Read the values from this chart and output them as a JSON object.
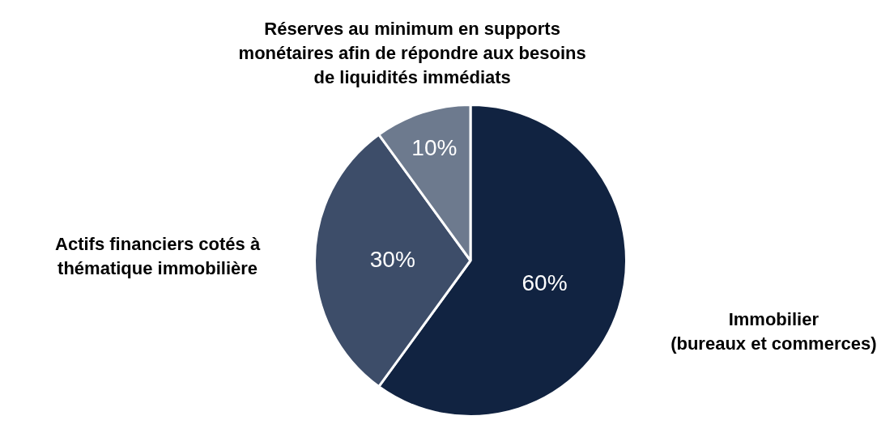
{
  "chart_data": {
    "type": "pie",
    "categories": [
      "Immobilier (bureaux et commerces)",
      "Actifs financiers cotés à thématique immobilière",
      "Réserves au minimum en supports monétaires afin de répondre aux besoins de liquidités immédiats"
    ],
    "values": [
      60,
      30,
      10
    ],
    "colors": [
      "#112341",
      "#3d4d69",
      "#6d7a8e"
    ],
    "value_labels": [
      "60%",
      "30%",
      "10%"
    ],
    "legend": false
  }
}
